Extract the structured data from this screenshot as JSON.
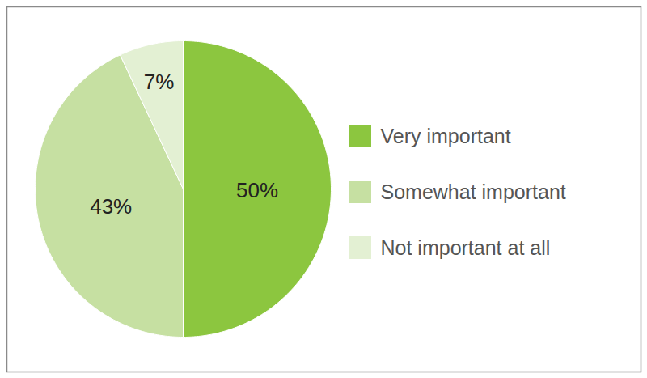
{
  "chart_data": {
    "type": "pie",
    "categories": [
      "Very important",
      "Somewhat important",
      "Not important at all"
    ],
    "values": [
      50,
      43,
      7
    ],
    "value_labels": [
      "50%",
      "43%",
      "7%"
    ],
    "colors": [
      "#8cc63f",
      "#c6e0a2",
      "#e3f0d3"
    ],
    "data_labels": true,
    "legend": "right"
  }
}
